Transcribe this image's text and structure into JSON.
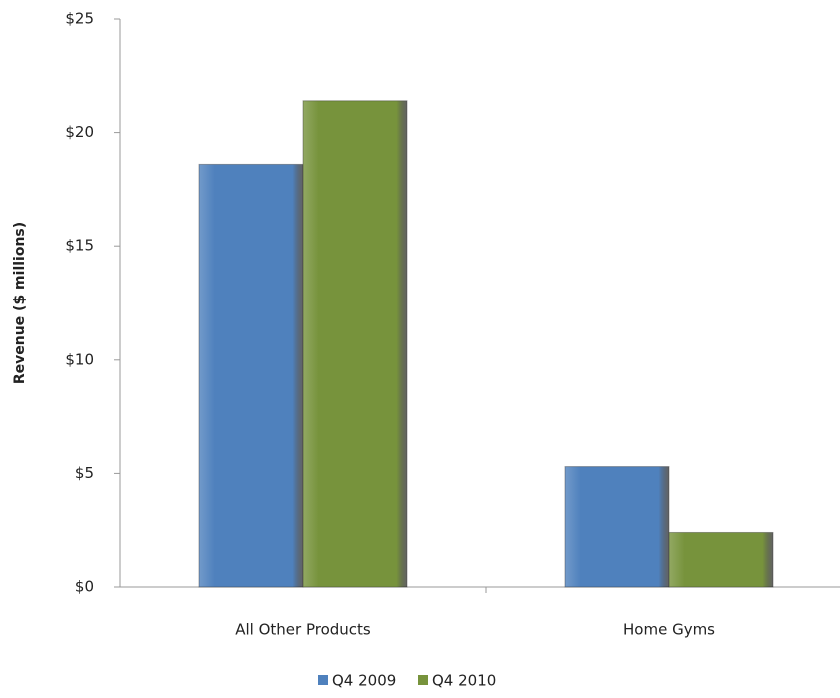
{
  "chart_data": {
    "type": "bar",
    "y_axis_label": "Revenue ($ millions)",
    "categories": [
      "All Other Products",
      "Home Gyms"
    ],
    "series": [
      {
        "name": "Q4 2009",
        "color": "#4f81bd",
        "values": [
          18.6,
          5.3
        ]
      },
      {
        "name": "Q4 2010",
        "color": "#77933c",
        "values": [
          21.4,
          2.4
        ]
      }
    ],
    "ylim": [
      0,
      25
    ],
    "yticks": [
      {
        "value": 0,
        "label": "$0"
      },
      {
        "value": 5,
        "label": "$5"
      },
      {
        "value": 10,
        "label": "$10"
      },
      {
        "value": 15,
        "label": "$15"
      },
      {
        "value": 20,
        "label": "$20"
      },
      {
        "value": 25,
        "label": "$25"
      }
    ],
    "legend": "bottom",
    "grid": false
  }
}
